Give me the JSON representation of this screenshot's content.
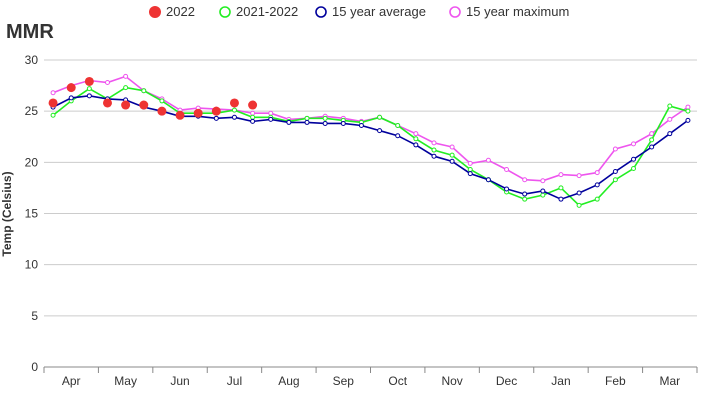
{
  "chart_data": {
    "type": "line",
    "title": "MMR",
    "ylabel": "Temp (Celsius)",
    "ylim": [
      0,
      30
    ],
    "yticks": [
      0,
      5,
      10,
      15,
      20,
      25,
      30
    ],
    "months": [
      "Apr",
      "May",
      "Jun",
      "Jul",
      "Aug",
      "Sep",
      "Oct",
      "Nov",
      "Dec",
      "Jan",
      "Feb",
      "Mar"
    ],
    "x_periods": 36,
    "grid": "horizontal",
    "legend_position": "top",
    "series": [
      {
        "name": "2022",
        "style": "dots",
        "color": "#ee3333",
        "values": [
          25.8,
          27.3,
          27.9,
          25.8,
          25.6,
          25.6,
          25.0,
          24.6,
          24.8,
          25.0,
          25.8,
          25.6
        ]
      },
      {
        "name": "2021-2022",
        "style": "line",
        "color": "#22ee22",
        "values": [
          24.6,
          26.0,
          27.2,
          26.2,
          27.3,
          27.0,
          26.0,
          24.8,
          24.8,
          24.8,
          25.1,
          24.4,
          24.4,
          24.0,
          24.3,
          24.3,
          24.1,
          23.9,
          24.4,
          23.6,
          22.3,
          21.2,
          20.7,
          19.3,
          18.3,
          17.1,
          16.4,
          16.8,
          17.5,
          15.8,
          16.4,
          18.3,
          19.4,
          22.2,
          25.5,
          25.0
        ]
      },
      {
        "name": "15 year average",
        "style": "line",
        "color": "#00009c",
        "values": [
          25.4,
          26.3,
          26.5,
          26.2,
          26.1,
          25.4,
          25.0,
          24.5,
          24.5,
          24.3,
          24.4,
          24.0,
          24.2,
          23.9,
          23.9,
          23.8,
          23.8,
          23.6,
          23.1,
          22.6,
          21.7,
          20.6,
          20.1,
          18.9,
          18.3,
          17.4,
          16.9,
          17.2,
          16.4,
          17.0,
          17.8,
          19.1,
          20.3,
          21.5,
          22.8,
          24.1
        ]
      },
      {
        "name": "15 year maximum",
        "style": "line",
        "color": "#ee55ee",
        "values": [
          26.8,
          27.5,
          28.0,
          27.8,
          28.4,
          27.0,
          26.2,
          25.1,
          25.3,
          25.2,
          25.1,
          24.8,
          24.8,
          24.2,
          24.3,
          24.5,
          24.3,
          24.0,
          24.4,
          23.6,
          22.8,
          21.9,
          21.5,
          19.9,
          20.2,
          19.3,
          18.3,
          18.2,
          18.8,
          18.7,
          19.0,
          21.3,
          21.8,
          22.8,
          24.2,
          25.4
        ]
      }
    ]
  }
}
